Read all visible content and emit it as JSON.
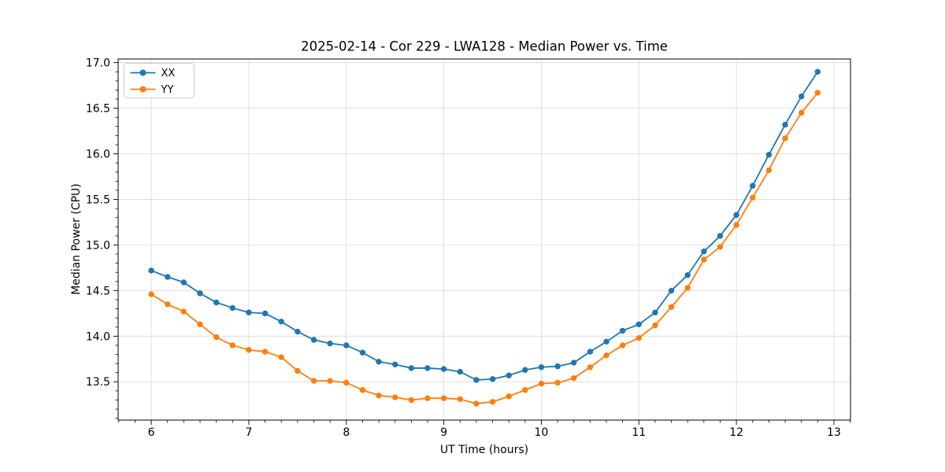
{
  "title": "2025-02-14 - Cor 229 - LWA128 - Median Power vs. Time",
  "chart_data": {
    "type": "line",
    "title": "2025-02-14 - Cor 229 - LWA128 - Median Power vs. Time",
    "xlabel": "UT Time (hours)",
    "ylabel": "Median Power (CPU)",
    "xlim": [
      5.66,
      13.17
    ],
    "ylim": [
      13.08,
      17.04
    ],
    "x_ticks": [
      6,
      7,
      8,
      9,
      10,
      11,
      12,
      13
    ],
    "y_ticks": [
      13.5,
      14.0,
      14.5,
      15.0,
      15.5,
      16.0,
      16.5,
      17.0
    ],
    "x_minor_step": 0.16667,
    "y_minor_step": 0.1,
    "grid": true,
    "grid_color": "#dcdcdc",
    "legend_position": "upper-left",
    "legend_entries": [
      "XX",
      "YY"
    ],
    "x": [
      6.0,
      6.167,
      6.333,
      6.5,
      6.667,
      6.833,
      7.0,
      7.167,
      7.333,
      7.5,
      7.667,
      7.833,
      8.0,
      8.167,
      8.333,
      8.5,
      8.667,
      8.833,
      9.0,
      9.167,
      9.333,
      9.5,
      9.667,
      9.833,
      10.0,
      10.167,
      10.333,
      10.5,
      10.667,
      10.833,
      11.0,
      11.167,
      11.333,
      11.5,
      11.667,
      11.833,
      12.0,
      12.167,
      12.333,
      12.5,
      12.667,
      12.833
    ],
    "series": [
      {
        "name": "XX",
        "color": "#1f77b4",
        "values": [
          14.72,
          14.65,
          14.59,
          14.47,
          14.37,
          14.31,
          14.26,
          14.25,
          14.16,
          14.05,
          13.96,
          13.92,
          13.9,
          13.82,
          13.72,
          13.69,
          13.65,
          13.65,
          13.64,
          13.61,
          13.52,
          13.53,
          13.57,
          13.63,
          13.66,
          13.67,
          13.71,
          13.83,
          13.94,
          14.06,
          14.13,
          14.26,
          14.5,
          14.67,
          14.93,
          15.1,
          15.33,
          15.65,
          15.99,
          16.32,
          16.63,
          16.9
        ]
      },
      {
        "name": "YY",
        "color": "#ff7f0e",
        "values": [
          14.46,
          14.35,
          14.27,
          14.13,
          13.99,
          13.9,
          13.85,
          13.83,
          13.77,
          13.62,
          13.51,
          13.51,
          13.49,
          13.41,
          13.35,
          13.33,
          13.3,
          13.32,
          13.32,
          13.31,
          13.26,
          13.28,
          13.34,
          13.41,
          13.48,
          13.49,
          13.54,
          13.66,
          13.79,
          13.9,
          13.98,
          14.12,
          14.32,
          14.53,
          14.84,
          14.98,
          15.22,
          15.52,
          15.82,
          16.17,
          16.45,
          16.67
        ]
      }
    ]
  }
}
